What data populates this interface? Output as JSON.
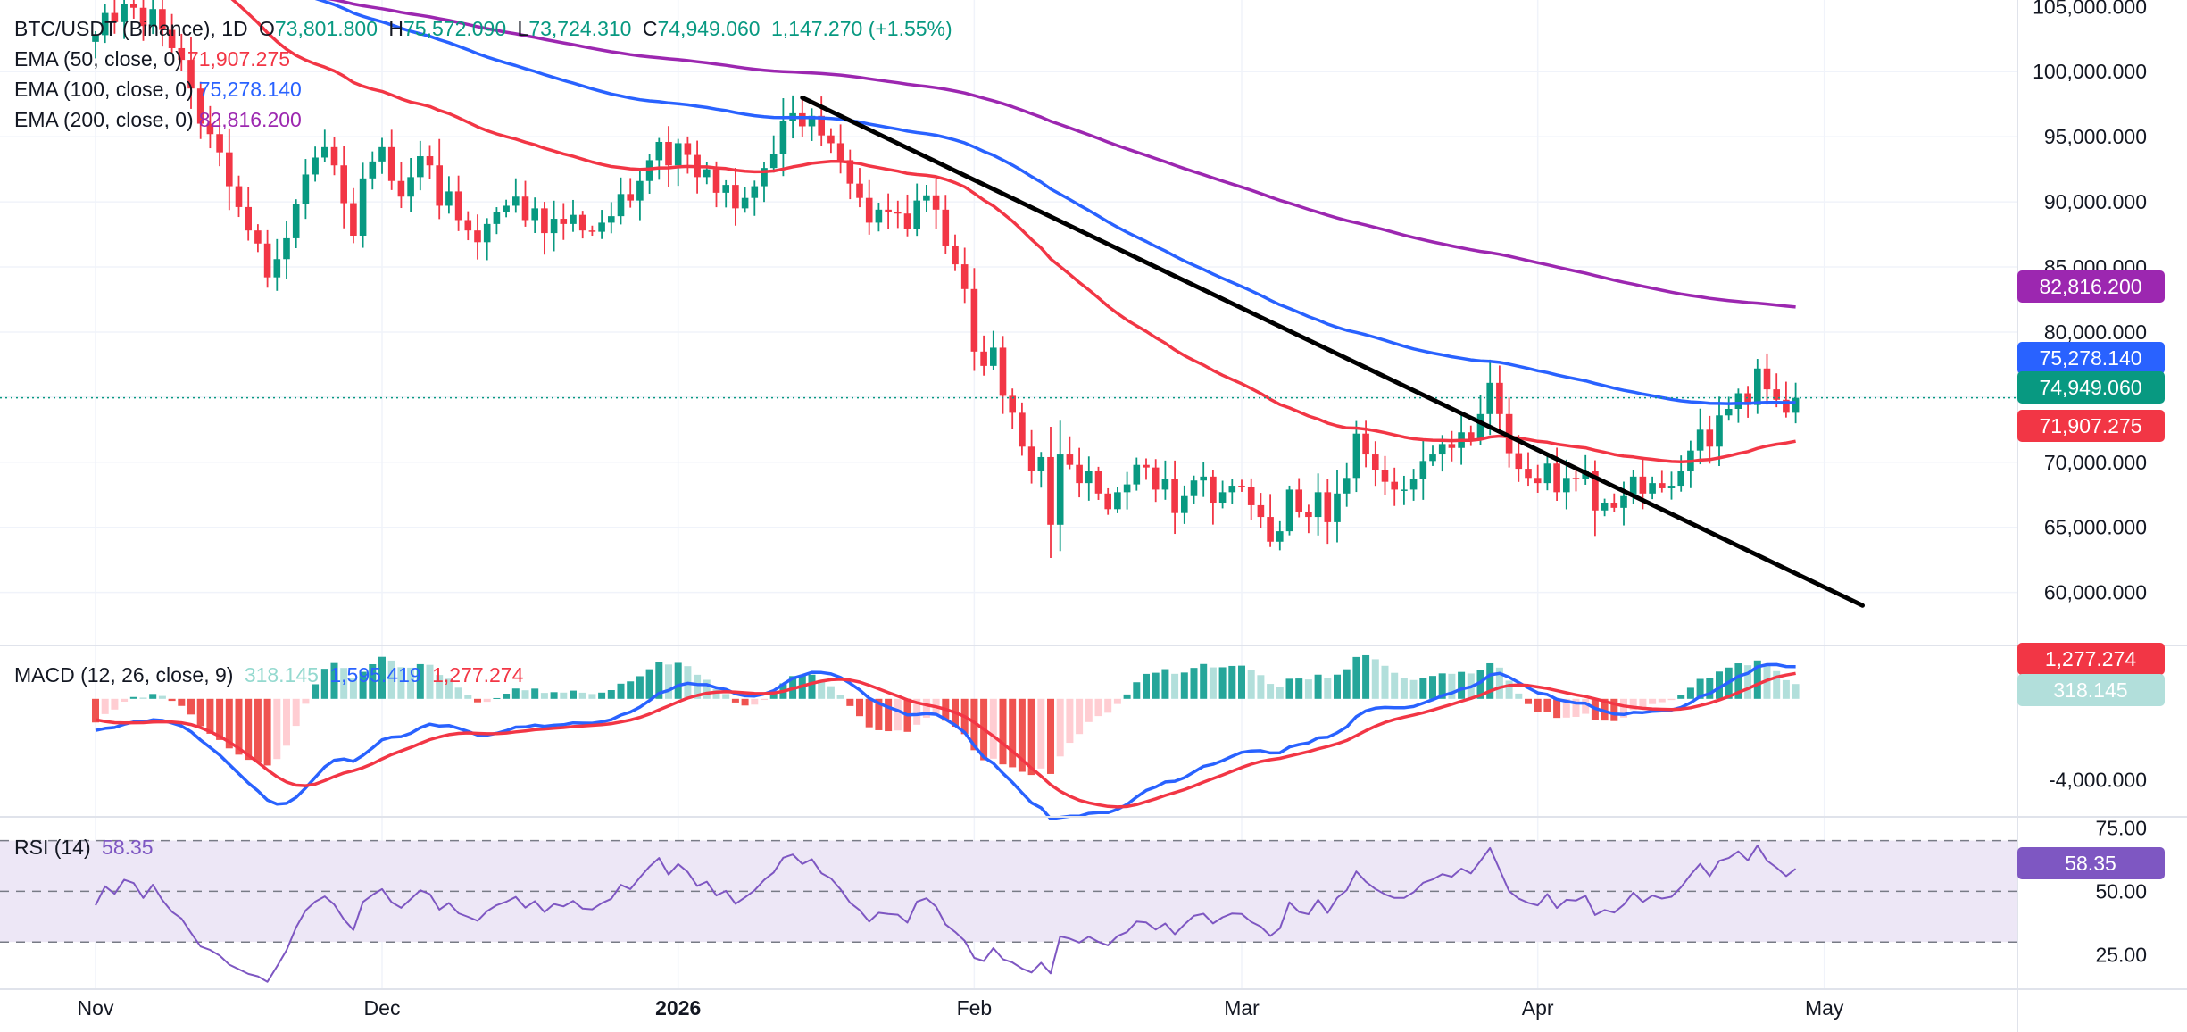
{
  "header": {
    "symbol": "BTC/USDT (Binance), 1D",
    "open_label": "O",
    "open": "73,801.800",
    "high_label": "H",
    "high": "75,572.090",
    "low_label": "L",
    "low": "73,724.310",
    "close_label": "C",
    "close": "74,949.060",
    "change": "1,147.270 (+1.55%)"
  },
  "ema_legend": [
    {
      "label": "EMA (50, close, 0)",
      "value": "71,907.275",
      "color": "#f23645"
    },
    {
      "label": "EMA (100, close, 0)",
      "value": "75,278.140",
      "color": "#2962ff"
    },
    {
      "label": "EMA (200, close, 0)",
      "value": "82,816.200",
      "color": "#9c27b0"
    }
  ],
  "macd_legend": {
    "label": "MACD (12, 26, close, 9)",
    "hist": "318.145",
    "macd": "1,595.419",
    "signal": "1,277.274"
  },
  "rsi_legend": {
    "label": "RSI (14)",
    "value": "58.35"
  },
  "price_axis": [
    "105,000.000",
    "100,000.000",
    "95,000.000",
    "90,000.000",
    "85,000.000",
    "80,000.000",
    "70,000.000",
    "65,000.000",
    "60,000.000"
  ],
  "macd_axis": [
    "-4,000.000"
  ],
  "rsi_axis": [
    "75.00",
    "50.00",
    "25.00"
  ],
  "time_axis": [
    "Nov",
    "Dec",
    "2026",
    "Feb",
    "Mar",
    "Apr",
    "May"
  ],
  "price_tags": [
    {
      "text": "82,816.200",
      "value": 82816.2,
      "color": "#9c27b0"
    },
    {
      "text": "75,278.140",
      "value": 75278.14,
      "color": "#2962ff"
    },
    {
      "text": "74,949.060",
      "value": 74949.06,
      "color": "#089981"
    },
    {
      "text": "71,907.275",
      "value": 71907.275,
      "color": "#f23645"
    }
  ],
  "macd_tags": [
    {
      "text": "1,277.274",
      "value": 1277.274,
      "color": "#f23645"
    },
    {
      "text": "318.145",
      "value": 318.145,
      "color": "#b2dfdb"
    }
  ],
  "rsi_tag": {
    "text": "58.35",
    "value": 58.35,
    "color": "#7e57c2"
  },
  "colors": {
    "up": "#089981",
    "down": "#f23645",
    "ema50": "#f23645",
    "ema100": "#2962ff",
    "ema200": "#9c27b0",
    "rsi": "#7e57c2",
    "rsi_band": "#ede7f6",
    "trendline": "#000000",
    "grid": "#f0f3fa"
  },
  "chart_data": {
    "type": "candlestick",
    "title": "BTC/USDT (Binance), 1D",
    "x_ticks": [
      {
        "label": "Nov",
        "index": 0
      },
      {
        "label": "Dec",
        "index": 30
      },
      {
        "label": "2026",
        "index": 61
      },
      {
        "label": "Feb",
        "index": 92
      },
      {
        "label": "Mar",
        "index": 120
      },
      {
        "label": "Apr",
        "index": 151
      },
      {
        "label": "May",
        "index": 181
      }
    ],
    "ylim": [
      56000,
      105500
    ],
    "trendline": {
      "from": {
        "index": 74,
        "value": 98000
      },
      "to": {
        "index": 185,
        "value": 59000
      }
    },
    "close_start": 102800,
    "close_path": [
      102800,
      104500,
      103800,
      105200,
      104900,
      103500,
      104800,
      103200,
      101800,
      100900,
      98700,
      96000,
      95200,
      93800,
      91200,
      89600,
      87800,
      86800,
      84200,
      85600,
      87200,
      89800,
      92100,
      93400,
      94200,
      92800,
      89900,
      87400,
      91800,
      93100,
      94200,
      91600,
      90400,
      91900,
      93500,
      92800,
      89700,
      90800,
      88600,
      87800,
      86900,
      88300,
      89200,
      89700,
      90400,
      88600,
      89500,
      87600,
      88700,
      88300,
      89000,
      87800,
      87700,
      88400,
      88900,
      90600,
      90100,
      91600,
      93200,
      94600,
      92800,
      94500,
      93600,
      91900,
      92500,
      90700,
      91300,
      89500,
      90300,
      91200,
      92600,
      93700,
      96200,
      96800,
      95800,
      96600,
      95100,
      94500,
      93200,
      91400,
      90300,
      88400,
      89400,
      89200,
      89100,
      87900,
      90100,
      90500,
      89400,
      86600,
      85200,
      83300,
      78500,
      77400,
      78800,
      75100,
      73800,
      71200,
      69300,
      70400,
      65200,
      70600,
      69800,
      68400,
      69300,
      67600,
      66400,
      67700,
      68300,
      69800,
      69600,
      67900,
      68700,
      66100,
      67400,
      68600,
      68900,
      66900,
      67700,
      68200,
      68100,
      66700,
      65800,
      63900,
      64700,
      67900,
      66200,
      65800,
      67700,
      65400,
      67600,
      68800,
      72200,
      70600,
      69400,
      68500,
      67900,
      67900,
      68700,
      70100,
      70600,
      71400,
      71100,
      72300,
      71800,
      73700,
      76100,
      73700,
      70700,
      69500,
      68800,
      68400,
      69900,
      67700,
      68800,
      68700,
      69300,
      66300,
      66900,
      66500,
      67400,
      68900,
      67600,
      68400,
      68000,
      68200,
      69300,
      70900,
      72500,
      71200,
      73600,
      74100,
      75300,
      74400,
      77200,
      75600,
      74800,
      73800,
      74949
    ]
  }
}
